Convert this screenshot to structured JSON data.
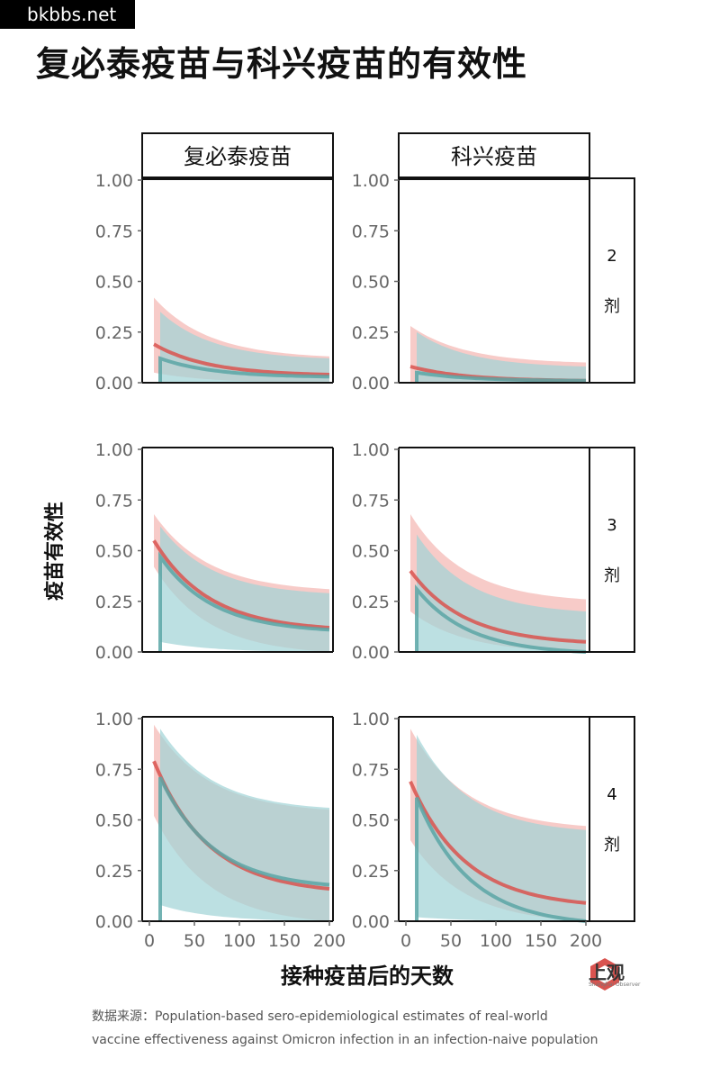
{
  "watermark": "bkbbs.net",
  "title": "复必泰疫苗与科兴疫苗的有效性",
  "logo": {
    "name": "上观",
    "subtitle": "Shanghai Observer",
    "icon": "shanghai-observer-logo-icon"
  },
  "source": {
    "prefix": "数据来源：",
    "line1": "Population-based sero-epidemiological estimates of real-world",
    "line2": "vaccine effectiveness against Omicron infection in an infection-naive population"
  },
  "chart_data": {
    "type": "line",
    "ylabel": "疫苗有效性",
    "xlabel": "接种疫苗后的天数",
    "xlim": [
      0,
      200
    ],
    "ylim": [
      0,
      1
    ],
    "x_ticks": [
      "0",
      "50",
      "100",
      "150",
      "200"
    ],
    "y_ticks": [
      "0.00",
      "0.25",
      "0.50",
      "0.75",
      "1.00"
    ],
    "columns": [
      "复必泰疫苗",
      "科兴疫苗"
    ],
    "rows": [
      {
        "dose": "2",
        "unit": "剂"
      },
      {
        "dose": "3",
        "unit": "剂"
      },
      {
        "dose": "4",
        "unit": "剂"
      }
    ],
    "colors": {
      "red": "#d9534f",
      "red_band": "#f4b9b5",
      "teal": "#5aa6a6",
      "teal_band": "#9fd3d6"
    },
    "panels": [
      {
        "row": 0,
        "col": 0,
        "red": {
          "x": [
            5,
            200
          ],
          "y": [
            0.19,
            0.04
          ],
          "lo": [
            0.05,
            0.0
          ],
          "hi": [
            0.42,
            0.13
          ]
        },
        "teal": {
          "x": [
            12,
            200
          ],
          "y": [
            0.12,
            0.03
          ],
          "lo": [
            0.0,
            0.0
          ],
          "hi": [
            0.35,
            0.12
          ]
        }
      },
      {
        "row": 0,
        "col": 1,
        "red": {
          "x": [
            5,
            200
          ],
          "y": [
            0.08,
            0.01
          ],
          "lo": [
            0.0,
            0.0
          ],
          "hi": [
            0.28,
            0.1
          ]
        },
        "teal": {
          "x": [
            12,
            200
          ],
          "y": [
            0.05,
            0.01
          ],
          "lo": [
            0.0,
            0.0
          ],
          "hi": [
            0.25,
            0.08
          ]
        }
      },
      {
        "row": 1,
        "col": 0,
        "red": {
          "x": [
            5,
            200
          ],
          "y": [
            0.55,
            0.12
          ],
          "lo": [
            0.42,
            0.0
          ],
          "hi": [
            0.68,
            0.31
          ]
        },
        "teal": {
          "x": [
            12,
            200
          ],
          "y": [
            0.47,
            0.11
          ],
          "lo": [
            0.05,
            0.0
          ],
          "hi": [
            0.62,
            0.29
          ]
        }
      },
      {
        "row": 1,
        "col": 1,
        "red": {
          "x": [
            5,
            200
          ],
          "y": [
            0.4,
            0.05
          ],
          "lo": [
            0.2,
            0.0
          ],
          "hi": [
            0.68,
            0.26
          ]
        },
        "teal": {
          "x": [
            12,
            200
          ],
          "y": [
            0.31,
            0.0
          ],
          "lo": [
            0.0,
            0.0
          ],
          "hi": [
            0.58,
            0.2
          ]
        }
      },
      {
        "row": 2,
        "col": 0,
        "red": {
          "x": [
            5,
            200
          ],
          "y": [
            0.79,
            0.16
          ],
          "lo": [
            0.52,
            0.0
          ],
          "hi": [
            0.97,
            0.55
          ]
        },
        "teal": {
          "x": [
            12,
            200
          ],
          "y": [
            0.71,
            0.18
          ],
          "lo": [
            0.08,
            0.0
          ],
          "hi": [
            0.95,
            0.56
          ]
        }
      },
      {
        "row": 2,
        "col": 1,
        "red": {
          "x": [
            5,
            200
          ],
          "y": [
            0.69,
            0.09
          ],
          "lo": [
            0.4,
            0.0
          ],
          "hi": [
            0.95,
            0.47
          ]
        },
        "teal": {
          "x": [
            12,
            200
          ],
          "y": [
            0.61,
            0.0
          ],
          "lo": [
            0.02,
            0.0
          ],
          "hi": [
            0.92,
            0.45
          ]
        }
      }
    ]
  }
}
